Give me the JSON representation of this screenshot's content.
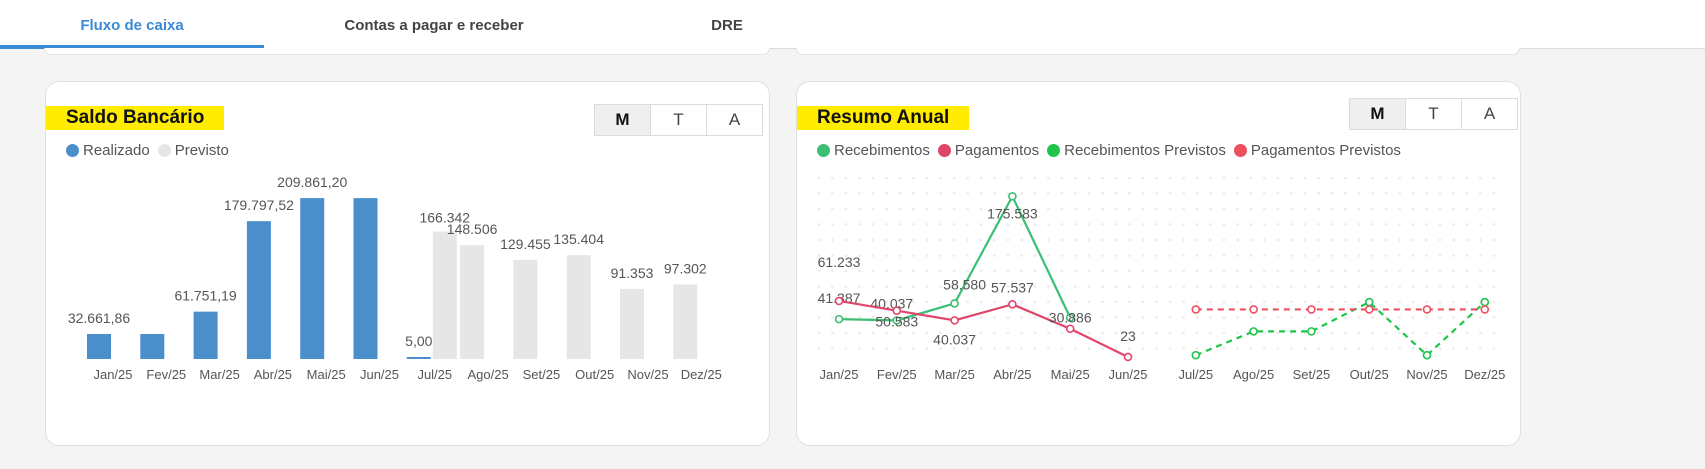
{
  "tabs": [
    {
      "label": "Fluxo de caixa",
      "active": true
    },
    {
      "label": "Contas a pagar e receber",
      "active": false
    },
    {
      "label": "DRE",
      "active": false
    }
  ],
  "period_buttons": [
    "M",
    "T",
    "A"
  ],
  "colors": {
    "accent": "#3a8ad6",
    "highlight": "#ffec00",
    "realizado": "#4a8fcc",
    "previsto": "#e6e6e6",
    "recebimentos": "#3cbf72",
    "pagamentos": "#e0456a",
    "recebimentos_previstos": "#1fc44a",
    "pagamentos_previstos": "#ee4f5f"
  },
  "saldo": {
    "title": "Saldo Bancário",
    "legend": [
      {
        "name": "Realizado",
        "color": "#4a8fcc"
      },
      {
        "name": "Previsto",
        "color": "#e6e6e6"
      }
    ]
  },
  "resumo": {
    "title": "Resumo Anual",
    "legend": [
      {
        "name": "Recebimentos",
        "color": "#3cbf72"
      },
      {
        "name": "Pagamentos",
        "color": "#e0456a"
      },
      {
        "name": "Recebimentos Previstos",
        "color": "#1fc44a"
      },
      {
        "name": "Pagamentos Previstos",
        "color": "#ee4f5f"
      }
    ]
  },
  "chart_data": [
    {
      "type": "bar",
      "title": "Saldo Bancário",
      "categories": [
        "Jan/25",
        "Fev/25",
        "Mar/25",
        "Abr/25",
        "Mai/25",
        "Jun/25",
        "Jul/25",
        "Ago/25",
        "Set/25",
        "Out/25",
        "Nov/25",
        "Dez/25"
      ],
      "series": [
        {
          "name": "Realizado",
          "values": [
            32661.86,
            32661.86,
            61751.19,
            179797.52,
            209861.2,
            209861.2,
            5.0,
            null,
            null,
            null,
            null,
            null
          ]
        },
        {
          "name": "Previsto",
          "values": [
            null,
            null,
            null,
            null,
            null,
            null,
            166342,
            148506,
            129455,
            135404,
            91353,
            97302
          ]
        }
      ],
      "data_labels": [
        "32.661,86",
        "",
        "61.751,19",
        "179.797,52",
        "209.861,20",
        "",
        "5,00",
        "148.506",
        "129.455",
        "135.404",
        "91.353",
        "97.302"
      ],
      "previsto_jul_label": "166.342",
      "ylim": [
        0,
        210000
      ],
      "legend_position": "top-left",
      "grid": false
    },
    {
      "type": "line",
      "title": "Resumo Anual",
      "categories": [
        "Jan/25",
        "Fev/25",
        "Mar/25",
        "Abr/25",
        "Mai/25",
        "Jun/25",
        "Jul/25",
        "Ago/25",
        "Set/25",
        "Out/25",
        "Nov/25",
        "Dez/25"
      ],
      "series": [
        {
          "name": "Recebimentos",
          "values": [
            41387,
            40037,
            58580,
            175583,
            43000,
            null,
            null,
            null,
            null,
            null,
            null,
            null
          ],
          "labels": [
            "41.387",
            "40.037",
            "58.580",
            "175.583",
            "",
            "",
            "",
            "",
            "",
            "",
            "",
            ""
          ]
        },
        {
          "name": "Pagamentos",
          "values": [
            61233,
            50583,
            40037,
            57537,
            30886,
            23,
            null,
            null,
            null,
            null,
            null,
            null
          ],
          "labels": [
            "61.233",
            "50.583",
            "40.037",
            "57.537",
            "30.886",
            "23",
            "",
            "",
            "",
            "",
            "",
            ""
          ]
        },
        {
          "name": "Recebimentos Previstos",
          "values": [
            null,
            null,
            null,
            null,
            null,
            null,
            2000,
            28000,
            28000,
            60000,
            2000,
            60000
          ],
          "labels": []
        },
        {
          "name": "Pagamentos Previstos",
          "values": [
            null,
            null,
            null,
            null,
            null,
            null,
            52000,
            52000,
            52000,
            52000,
            52000,
            52000
          ],
          "labels": []
        }
      ],
      "ylim": [
        0,
        200000
      ],
      "legend_position": "top-left",
      "grid": "dotted"
    }
  ]
}
